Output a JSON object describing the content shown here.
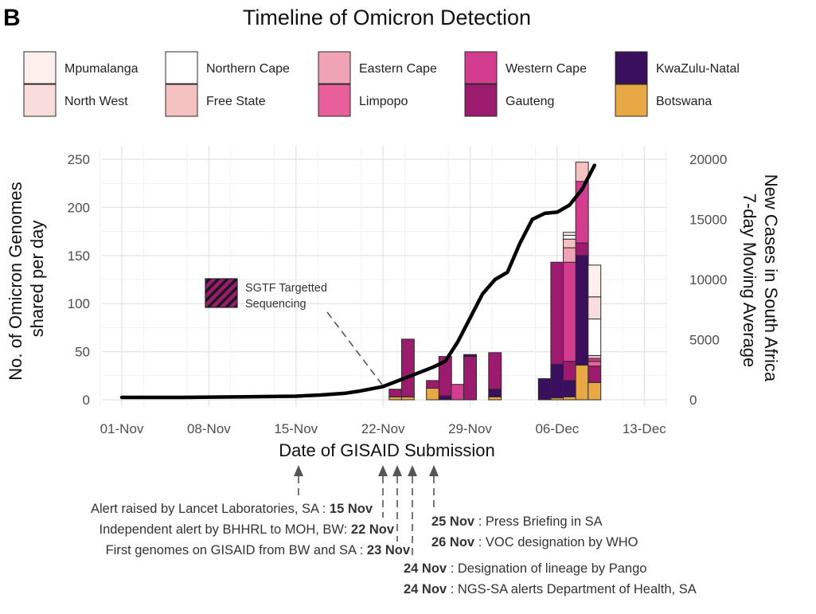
{
  "panel_label": "B",
  "chart_data": {
    "type": "bar",
    "title": "Timeline of Omicron Detection",
    "xlabel": "Date of GISAID Submission",
    "ylabel_lines": [
      "No. of Omicron Genomes",
      "shared per day"
    ],
    "y2label_lines": [
      "New Cases in South Africa",
      "7-day Moving Average"
    ],
    "ylim": [
      0,
      250
    ],
    "y2lim": [
      0,
      20000
    ],
    "yticks": [
      0,
      50,
      100,
      150,
      200,
      250
    ],
    "y2ticks": [
      0,
      5000,
      10000,
      15000,
      20000
    ],
    "x_tick_labels": [
      "01-Nov",
      "08-Nov",
      "15-Nov",
      "22-Nov",
      "29-Nov",
      "06-Dec",
      "13-Dec"
    ],
    "x_tick_days": [
      0,
      7,
      14,
      21,
      28,
      35,
      42
    ],
    "legend_items": [
      {
        "name": "Mpumalanga",
        "color": "#fdf0ec"
      },
      {
        "name": "North West",
        "color": "#f9dcdc"
      },
      {
        "name": "Northern Cape",
        "color": "#ffffff"
      },
      {
        "name": "Free State",
        "color": "#f5c1c1"
      },
      {
        "name": "Eastern Cape",
        "color": "#f0a3b4"
      },
      {
        "name": "Limpopo",
        "color": "#e8609a"
      },
      {
        "name": "Western Cape",
        "color": "#d33c8f"
      },
      {
        "name": "Gauteng",
        "color": "#9c1b6f"
      },
      {
        "name": "KwaZulu-Natal",
        "color": "#3a0f5e"
      },
      {
        "name": "Botswana",
        "color": "#e8a944"
      }
    ],
    "bars": [
      {
        "day": 22,
        "segments": [
          {
            "region": "Botswana",
            "value": 3
          },
          {
            "region": "Gauteng",
            "value": 8
          }
        ]
      },
      {
        "day": 23,
        "segments": [
          {
            "region": "Botswana",
            "value": 3
          },
          {
            "region": "Gauteng",
            "value": 60
          }
        ]
      },
      {
        "day": 25,
        "segments": [
          {
            "region": "Botswana",
            "value": 12
          },
          {
            "region": "Gauteng",
            "value": 8
          }
        ]
      },
      {
        "day": 26,
        "segments": [
          {
            "region": "KwaZulu-Natal",
            "value": 4
          },
          {
            "region": "Gauteng",
            "value": 41
          }
        ]
      },
      {
        "day": 27,
        "segments": [
          {
            "region": "Western Cape",
            "value": 16
          }
        ]
      },
      {
        "day": 28,
        "segments": [
          {
            "region": "Gauteng",
            "value": 45
          },
          {
            "region": "KwaZulu-Natal",
            "value": 2
          }
        ]
      },
      {
        "day": 30,
        "segments": [
          {
            "region": "Botswana",
            "value": 3
          },
          {
            "region": "KwaZulu-Natal",
            "value": 8
          },
          {
            "region": "Gauteng",
            "value": 38
          }
        ]
      },
      {
        "day": 34,
        "segments": [
          {
            "region": "KwaZulu-Natal",
            "value": 22
          }
        ]
      },
      {
        "day": 35,
        "segments": [
          {
            "region": "Botswana",
            "value": 2
          },
          {
            "region": "KwaZulu-Natal",
            "value": 35
          },
          {
            "region": "Gauteng",
            "value": 106
          }
        ]
      },
      {
        "day": 36,
        "segments": [
          {
            "region": "Botswana",
            "value": 3
          },
          {
            "region": "KwaZulu-Natal",
            "value": 17
          },
          {
            "region": "Gauteng",
            "value": 20
          },
          {
            "region": "Western Cape",
            "value": 103
          },
          {
            "region": "Eastern Cape",
            "value": 15
          },
          {
            "region": "Free State",
            "value": 9
          },
          {
            "region": "Northern Cape",
            "value": 4
          },
          {
            "region": "Mpumalanga",
            "value": 3
          }
        ]
      },
      {
        "day": 37,
        "segments": [
          {
            "region": "Botswana",
            "value": 36
          },
          {
            "region": "KwaZulu-Natal",
            "value": 114
          },
          {
            "region": "Gauteng",
            "value": 13
          },
          {
            "region": "Western Cape",
            "value": 64
          },
          {
            "region": "Free State",
            "value": 20
          }
        ]
      },
      {
        "day": 38,
        "segments": [
          {
            "region": "Botswana",
            "value": 18
          },
          {
            "region": "Gauteng",
            "value": 17
          },
          {
            "region": "Limpopo",
            "value": 5
          },
          {
            "region": "Western Cape",
            "value": 3
          },
          {
            "region": "Free State",
            "value": 3
          },
          {
            "region": "Northern Cape",
            "value": 38
          },
          {
            "region": "North West",
            "value": 23
          },
          {
            "region": "Mpumalanga",
            "value": 33
          }
        ]
      }
    ],
    "line": {
      "name": "New Cases in South Africa 7-day Moving Average",
      "days": [
        0,
        5,
        10,
        14,
        16,
        18,
        19,
        20,
        21,
        22,
        23,
        24,
        25,
        26,
        27,
        28,
        29,
        30,
        31,
        32,
        33,
        34,
        35,
        36,
        37,
        38
      ],
      "values": [
        200,
        200,
        250,
        300,
        400,
        550,
        700,
        900,
        1100,
        1500,
        1900,
        2300,
        2700,
        3200,
        4800,
        6800,
        8800,
        10000,
        10600,
        13000,
        15000,
        15500,
        15600,
        16200,
        17500,
        19500
      ]
    },
    "annotation": {
      "label_lines": [
        "SGTF Targetted",
        "Sequencing"
      ]
    }
  },
  "timeline_notes": [
    {
      "text": "Alert raised by Lancet Laboratories, SA : ",
      "date": "15 Nov"
    },
    {
      "text": "Independent alert by BHHRL to MOH, BW: ",
      "date": "22 Nov"
    },
    {
      "text": "First genomes on GISAID from BW and SA : ",
      "date": "23 Nov"
    }
  ],
  "timeline_notes_right": [
    {
      "date": "25 Nov",
      "text": " : Press Briefing in SA"
    },
    {
      "date": "26 Nov",
      "text": " : VOC designation by WHO"
    },
    {
      "date": "24 Nov",
      "text": " : Designation of lineage by Pango"
    },
    {
      "date": "24 Nov",
      "text": " : NGS-SA alerts Department of Health, SA"
    }
  ]
}
